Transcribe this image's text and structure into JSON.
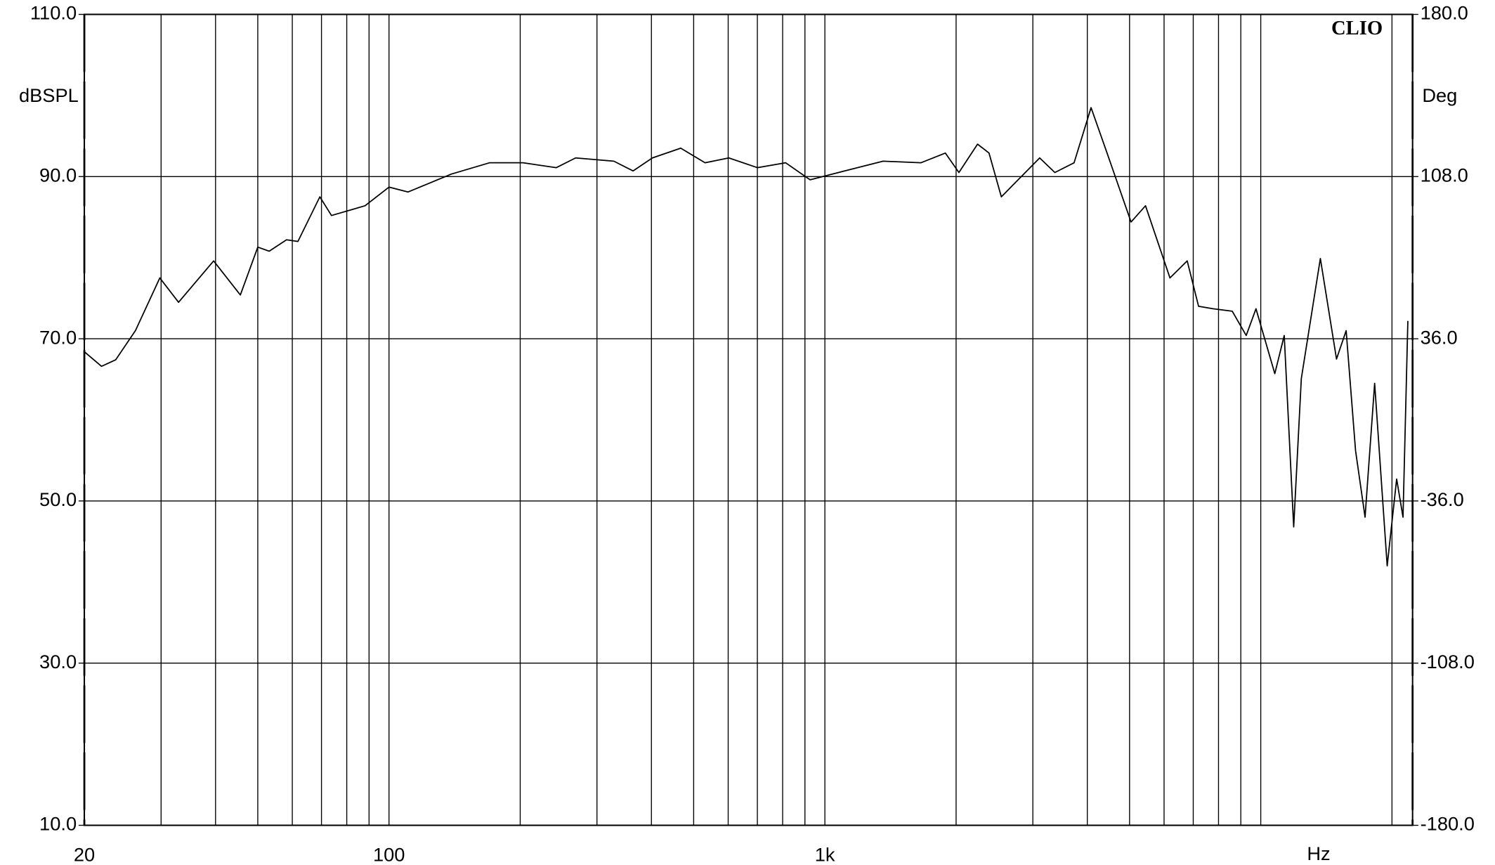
{
  "chart_data": {
    "type": "line",
    "annotation": "CLIO",
    "ylabel": "dBSPL",
    "y2label": "Deg",
    "xlabel": "Hz",
    "xscale": "log",
    "color": "#000000",
    "grid": true,
    "xlim": [
      20,
      22300
    ],
    "xticks": [
      20,
      100,
      {
        "value": 1000,
        "label": "1k"
      }
    ],
    "xminor": [
      30,
      40,
      50,
      60,
      70,
      80,
      90,
      200,
      300,
      400,
      500,
      600,
      700,
      800,
      900,
      2000,
      3000,
      4000,
      5000,
      6000,
      7000,
      8000,
      9000,
      10000,
      20000
    ],
    "ylim": [
      10,
      110
    ],
    "yticks": [
      {
        "value": 10,
        "label": "10.0"
      },
      {
        "value": 30,
        "label": "30.0"
      },
      {
        "value": 50,
        "label": "50.0"
      },
      {
        "value": 70,
        "label": "70.0"
      },
      {
        "value": 90,
        "label": "90.0"
      },
      {
        "value": 110,
        "label": "110.0"
      }
    ],
    "y2lim": [
      -180,
      180
    ],
    "y2ticks": [
      {
        "value": -180,
        "label": "-180.0"
      },
      {
        "value": -108,
        "label": "-108.0"
      },
      {
        "value": -36,
        "label": "-36.0"
      },
      {
        "value": 36,
        "label": "36.0"
      },
      {
        "value": 108,
        "label": "108.0"
      },
      {
        "value": 180,
        "label": "180.0"
      }
    ],
    "x": [
      20,
      21.9,
      23.6,
      26.2,
      29.8,
      32.9,
      39.6,
      45.6,
      50,
      53.1,
      58.2,
      61.8,
      69.4,
      73.8,
      88.1,
      100,
      110.6,
      138.9,
      170,
      203,
      242,
      268,
      328,
      363,
      402,
      467,
      531,
      602,
      700,
      813,
      925,
      1110,
      1360,
      1660,
      1890,
      2030,
      2240,
      2380,
      2540,
      2810,
      3110,
      3370,
      3730,
      4080,
      4440,
      5040,
      5440,
      6190,
      6780,
      7200,
      7770,
      8600,
      9260,
      9750,
      10770,
      11320,
      11900,
      12390,
      13700,
      14920,
      15700,
      16500,
      17350,
      18250,
      19500,
      20500,
      21200,
      21750
    ],
    "values": [
      68.4,
      66.6,
      67.4,
      71.0,
      77.5,
      74.5,
      79.6,
      75.4,
      81.3,
      80.8,
      82.2,
      82.0,
      87.5,
      85.2,
      86.4,
      88.7,
      88.1,
      90.3,
      91.7,
      91.7,
      91.1,
      92.3,
      91.9,
      90.7,
      92.3,
      93.5,
      91.7,
      92.3,
      91.1,
      91.7,
      89.6,
      90.7,
      91.9,
      91.7,
      92.9,
      90.5,
      94.0,
      92.9,
      87.5,
      89.9,
      92.3,
      90.5,
      91.7,
      98.5,
      92.9,
      84.4,
      86.4,
      77.5,
      79.6,
      74.0,
      73.7,
      73.4,
      70.4,
      73.7,
      65.7,
      70.4,
      46.8,
      65.1,
      79.9,
      67.5,
      71.0,
      56.2,
      48.0,
      64.5,
      42.0,
      52.7,
      48.0,
      72.2
    ]
  }
}
